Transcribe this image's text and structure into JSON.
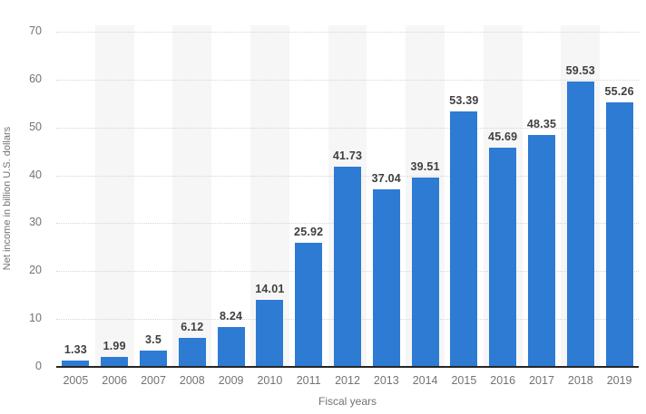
{
  "chart_data": {
    "type": "bar",
    "title": "",
    "categories": [
      "2005",
      "2006",
      "2007",
      "2008",
      "2009",
      "2010",
      "2011",
      "2012",
      "2013",
      "2014",
      "2015",
      "2016",
      "2017",
      "2018",
      "2019"
    ],
    "values": [
      1.33,
      1.99,
      3.5,
      6.12,
      8.24,
      14.01,
      25.92,
      41.73,
      37.04,
      39.51,
      53.39,
      45.69,
      48.35,
      59.53,
      55.26
    ],
    "value_labels": [
      "1.33",
      "1.99",
      "3.5",
      "6.12",
      "8.24",
      "14.01",
      "25.92",
      "41.73",
      "37.04",
      "39.51",
      "53.39",
      "45.69",
      "48.35",
      "59.53",
      "55.26"
    ],
    "xlabel": "Fiscal years",
    "ylabel": "Net income in billion U.S. dollars",
    "ylim": [
      0,
      70
    ],
    "ytick_interval": 10,
    "ytick_labels": [
      "0",
      "10",
      "20",
      "30",
      "40",
      "50",
      "60",
      "70"
    ],
    "grid": "horizontal dotted gridlines, alternating vertical category shading",
    "legend": "none",
    "colors": {
      "bar": "#2d7bd3",
      "plot_band": "#f6f6f6",
      "gridline": "#d6d6d6",
      "axis_line": "#262626",
      "value_label": "#3f3f3f",
      "axis_text": "#737373",
      "background": "#ffffff"
    }
  }
}
